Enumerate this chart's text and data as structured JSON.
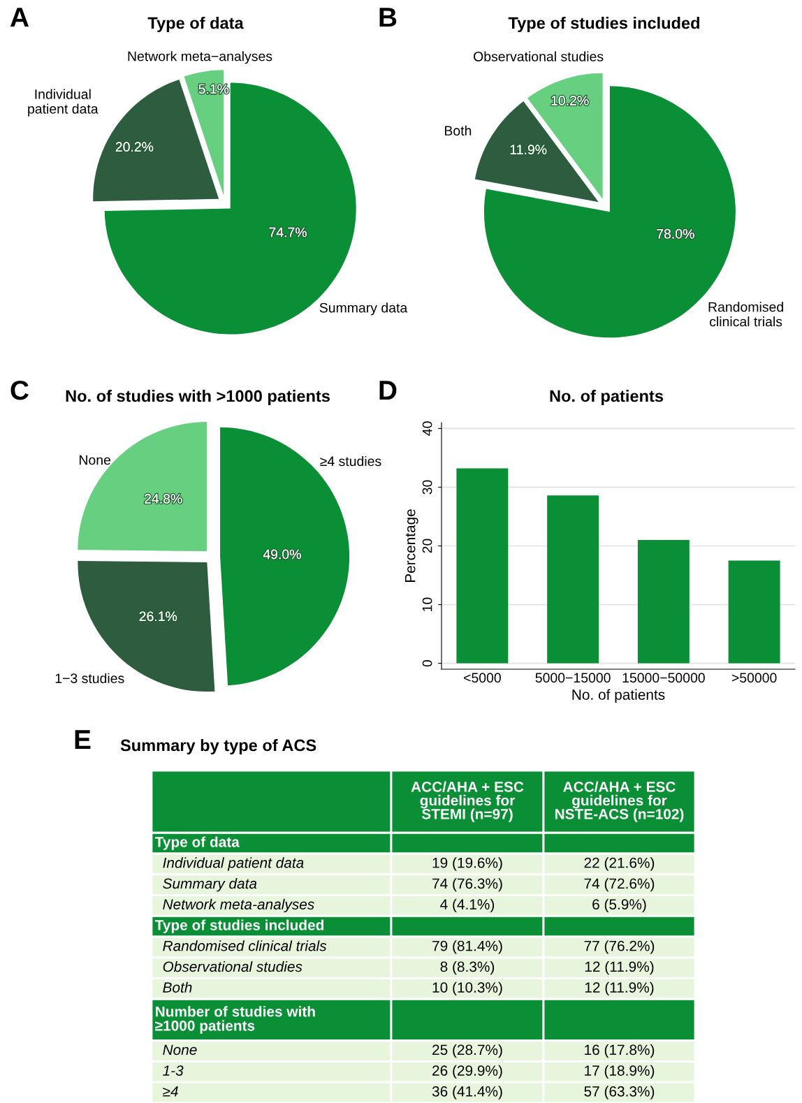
{
  "chart_data": [
    {
      "type": "pie",
      "title": "Type of data",
      "annotations": [
        "A"
      ],
      "categories": [
        "Summary data",
        "Individual\npatient data",
        "Network meta−analyses"
      ],
      "values": [
        74.7,
        20.2,
        5.1
      ],
      "value_labels": [
        "74.7%",
        "20.2%",
        "5.1%"
      ],
      "colors": [
        "#0a8f36",
        "#2d5c3e",
        "#66cf80"
      ]
    },
    {
      "type": "pie",
      "title": "Type of studies included",
      "annotations": [
        "B"
      ],
      "categories": [
        "Randomised\nclinical trials",
        "Both",
        "Observational studies"
      ],
      "values": [
        78.0,
        11.9,
        10.2
      ],
      "value_labels": [
        "78.0%",
        "11.9%",
        "10.2%"
      ],
      "colors": [
        "#0a8f36",
        "#2d5c3e",
        "#66cf80"
      ]
    },
    {
      "type": "pie",
      "title": "No. of studies with >1000 patients",
      "annotations": [
        "C"
      ],
      "categories": [
        "≥4 studies",
        "1−3 studies",
        "None"
      ],
      "values": [
        49.0,
        26.1,
        24.8
      ],
      "value_labels": [
        "49.0%",
        "26.1%",
        "24.8%"
      ],
      "colors": [
        "#0a8f36",
        "#2d5c3e",
        "#66cf80"
      ]
    },
    {
      "type": "bar",
      "title": "No. of patients",
      "annotations": [
        "D"
      ],
      "xlabel": "No. of patients",
      "ylabel": "Percentage",
      "categories": [
        "<5000",
        "5000−15000",
        "15000−50000",
        ">50000"
      ],
      "values": [
        33.2,
        28.6,
        21.0,
        17.5
      ],
      "color": "#0a8f36",
      "ylim": [
        -1,
        41
      ],
      "yticks": [
        0,
        10,
        20,
        30,
        40
      ],
      "grid": "y"
    },
    {
      "type": "other",
      "title": "Summary by type of ACS",
      "annotations": [
        "E"
      ],
      "categories": [
        "ACC/AHA + ESC\nguidelines for\nSTEMI (n=97)",
        "ACC/AHA + ESC\nguidelines for\nNSTE-ACS (n=102)"
      ],
      "y_categories": [
        "Type of data",
        "Individual patient data",
        "Summary data",
        "Network meta-analyses",
        "Type of studies included",
        "Randomised clinical trials",
        "Observational studies",
        "Both",
        "Number of studies with\n≥1000 patients",
        "None",
        "1-3",
        "≥4"
      ],
      "cell_labels": [
        [
          null,
          null
        ],
        [
          "19 (19.6%)",
          "22 (21.6%)"
        ],
        [
          "74 (76.3%)",
          "74 (72.6%)"
        ],
        [
          "4 (4.1%)",
          "6 (5.9%)"
        ],
        [
          null,
          null
        ],
        [
          "79 (81.4%)",
          "77 (76.2%)"
        ],
        [
          "8 (8.3%)",
          "12 (11.9%)"
        ],
        [
          "10 (10.3%)",
          "12 (11.9%)"
        ],
        [
          null,
          null
        ],
        [
          "25 (28.7%)",
          "16 (17.8%)"
        ],
        [
          "26 (29.9%)",
          "17 (18.9%)"
        ],
        [
          "36 (41.4%)",
          "57 (63.3%)"
        ]
      ]
    }
  ]
}
